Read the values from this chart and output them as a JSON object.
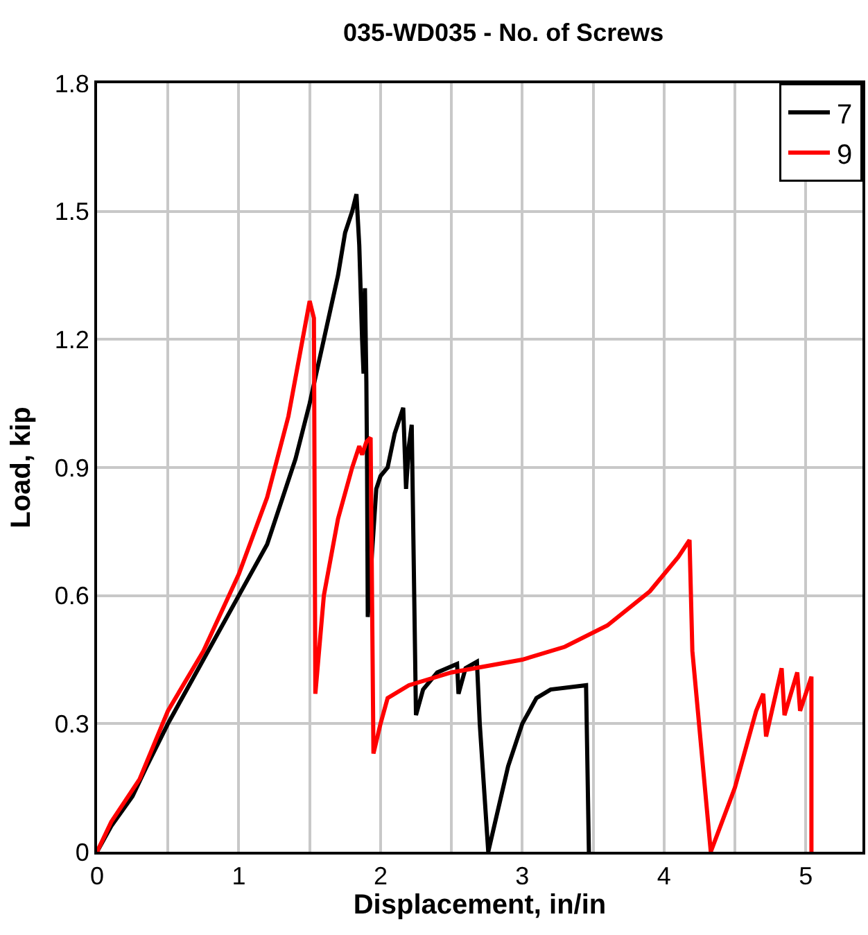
{
  "chart_data": {
    "type": "line",
    "title": "035-WD035 - No. of Screws",
    "xlabel": "Displacement, in/in",
    "ylabel": "Load, kip",
    "xlim": [
      0,
      5.4
    ],
    "ylim": [
      0,
      1.8
    ],
    "xticks": [
      0,
      {
        "value": 0.5,
        "label": null
      },
      1,
      {
        "value": 1.5,
        "label": null
      },
      2,
      {
        "value": 2.5,
        "label": null
      },
      3,
      {
        "value": 3.5,
        "label": null
      },
      4,
      {
        "value": 4.5,
        "label": null
      },
      5
    ],
    "yticks": [
      0,
      0.3,
      0.6,
      0.9,
      1.2,
      1.5,
      1.8
    ],
    "grid": true,
    "legend": "top right",
    "marker": "none",
    "line_style": "solid",
    "series": [
      {
        "name": "7",
        "color": "#000000",
        "x": [
          0,
          0.1,
          0.25,
          0.35,
          0.5,
          0.75,
          1.0,
          1.2,
          1.4,
          1.5,
          1.6,
          1.7,
          1.75,
          1.8,
          1.83,
          1.85,
          1.87,
          1.88,
          1.89,
          1.9,
          1.905,
          1.91,
          1.95,
          1.97,
          2.0,
          2.05,
          2.1,
          2.16,
          2.18,
          2.2,
          2.22,
          2.25,
          2.3,
          2.4,
          2.54,
          2.55,
          2.6,
          2.68,
          2.7,
          2.76,
          2.9,
          3.0,
          3.1,
          3.2,
          3.45,
          3.47
        ],
        "values": [
          0,
          0.06,
          0.13,
          0.2,
          0.3,
          0.45,
          0.6,
          0.72,
          0.92,
          1.05,
          1.2,
          1.35,
          1.45,
          1.5,
          1.54,
          1.42,
          1.2,
          1.12,
          1.32,
          1.1,
          0.9,
          0.55,
          0.75,
          0.85,
          0.88,
          0.9,
          0.98,
          1.04,
          0.85,
          0.95,
          1.0,
          0.32,
          0.38,
          0.42,
          0.44,
          0.37,
          0.43,
          0.445,
          0.3,
          0,
          0.2,
          0.3,
          0.36,
          0.38,
          0.39,
          0
        ]
      },
      {
        "name": "9",
        "color": "#ff0000",
        "x": [
          0,
          0.1,
          0.3,
          0.5,
          0.75,
          1.0,
          1.2,
          1.35,
          1.45,
          1.5,
          1.53,
          1.54,
          1.6,
          1.7,
          1.8,
          1.85,
          1.87,
          1.9,
          1.93,
          1.95,
          2.0,
          2.05,
          2.2,
          2.5,
          3.0,
          3.3,
          3.6,
          3.9,
          4.1,
          4.18,
          4.2,
          4.33,
          4.5,
          4.65,
          4.7,
          4.72,
          4.83,
          4.85,
          4.94,
          4.96,
          5.04,
          5.04
        ],
        "values": [
          0,
          0.07,
          0.17,
          0.33,
          0.47,
          0.65,
          0.83,
          1.02,
          1.2,
          1.29,
          1.25,
          0.37,
          0.6,
          0.78,
          0.9,
          0.95,
          0.93,
          0.96,
          0.97,
          0.23,
          0.3,
          0.36,
          0.39,
          0.42,
          0.45,
          0.48,
          0.53,
          0.61,
          0.69,
          0.73,
          0.47,
          0,
          0.15,
          0.33,
          0.37,
          0.27,
          0.43,
          0.32,
          0.42,
          0.33,
          0.41,
          0
        ]
      }
    ]
  }
}
